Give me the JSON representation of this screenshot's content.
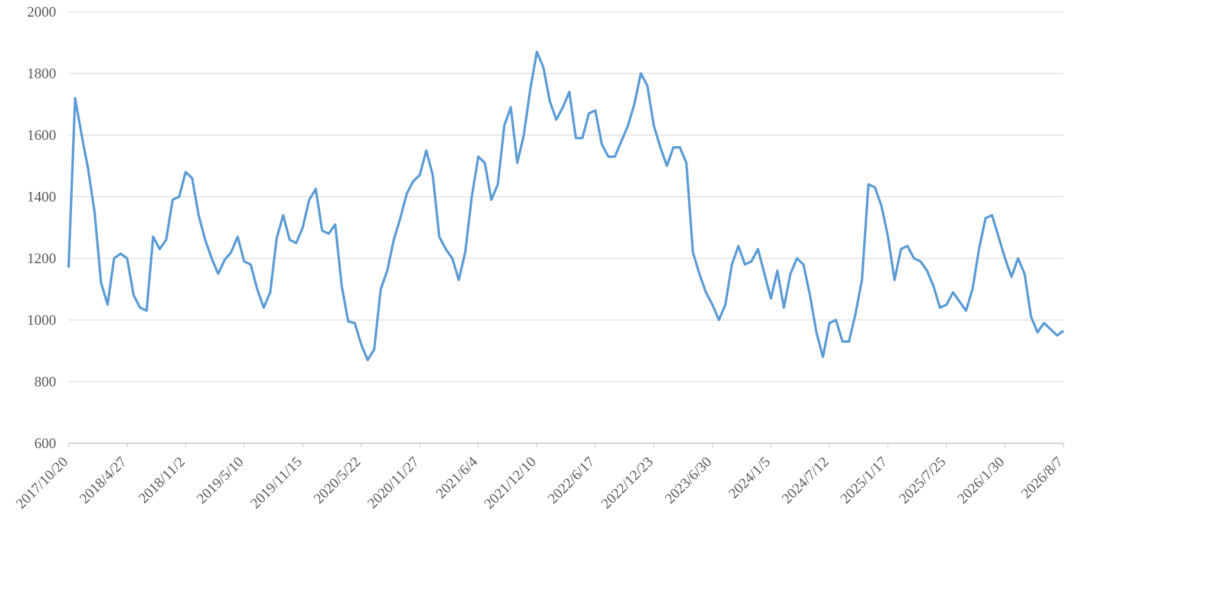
{
  "chart_data": {
    "type": "line",
    "categories": [
      "2017/10/20",
      null,
      null,
      null,
      null,
      null,
      null,
      null,
      null,
      "2018/4/27",
      null,
      null,
      null,
      null,
      null,
      null,
      null,
      null,
      "2018/11/2",
      null,
      null,
      null,
      null,
      null,
      null,
      null,
      null,
      "2019/5/10",
      null,
      null,
      null,
      null,
      null,
      null,
      null,
      null,
      "2019/11/15",
      null,
      null,
      null,
      null,
      null,
      null,
      null,
      null,
      "2020/5/22",
      null,
      null,
      null,
      null,
      null,
      null,
      null,
      null,
      "2020/11/27",
      null,
      null,
      null,
      null,
      null,
      null,
      null,
      null,
      "2021/6/4",
      null,
      null,
      null,
      null,
      null,
      null,
      null,
      null,
      "2021/12/10",
      null,
      null,
      null,
      null,
      null,
      null,
      null,
      null,
      "2022/6/17",
      null,
      null,
      null,
      null,
      null,
      null,
      null,
      null,
      "2022/12/23",
      null,
      null,
      null,
      null,
      null,
      null,
      null,
      null,
      "2023/6/30",
      null,
      null,
      null,
      null,
      null,
      null,
      null,
      null,
      "2024/1/5",
      null,
      null,
      null,
      null,
      null,
      null,
      null,
      null,
      "2024/7/12",
      null,
      null,
      null,
      null,
      null,
      null,
      null,
      null,
      "2025/1/17",
      null,
      null,
      null,
      null,
      null,
      null,
      null,
      null,
      "2025/7/25",
      null,
      null,
      null,
      null,
      null,
      null,
      null,
      null,
      "2026/1/30",
      null,
      null,
      null,
      null,
      null,
      null,
      null,
      null,
      "2026/8/7"
    ],
    "series": [
      {
        "color": "#5b9bd5",
        "values": [
          1170,
          1720,
          1600,
          1490,
          1350,
          1120,
          1050,
          1200,
          1215,
          1200,
          1080,
          1040,
          1030,
          1270,
          1230,
          1260,
          1390,
          1400,
          1480,
          1460,
          1340,
          1260,
          1200,
          1150,
          1195,
          1220,
          1270,
          1190,
          1180,
          1100,
          1040,
          1090,
          1265,
          1340,
          1260,
          1250,
          1300,
          1390,
          1425,
          1290,
          1280,
          1310,
          1110,
          995,
          990,
          920,
          870,
          905,
          1100,
          1160,
          1260,
          1330,
          1410,
          1450,
          1470,
          1550,
          1470,
          1270,
          1230,
          1200,
          1130,
          1220,
          1400,
          1530,
          1510,
          1390,
          1440,
          1630,
          1690,
          1510,
          1600,
          1750,
          1870,
          1820,
          1710,
          1650,
          1690,
          1740,
          1590,
          1590,
          1670,
          1680,
          1570,
          1530,
          1530,
          1580,
          1630,
          1700,
          1800,
          1760,
          1630,
          1560,
          1500,
          1560,
          1560,
          1510,
          1220,
          1150,
          1090,
          1050,
          1000,
          1050,
          1180,
          1240,
          1180,
          1190,
          1230,
          1150,
          1070,
          1160,
          1040,
          1150,
          1200,
          1180,
          1080,
          960,
          880,
          990,
          1000,
          930,
          930,
          1020,
          1130,
          1440,
          1430,
          1370,
          1270,
          1130,
          1230,
          1240,
          1200,
          1190,
          1160,
          1110,
          1040,
          1050,
          1090,
          1060,
          1030,
          1100,
          1230,
          1330,
          1340,
          1270,
          1200,
          1140,
          1200,
          1150,
          1010,
          960,
          990,
          970,
          950,
          965
        ]
      }
    ],
    "ylim": [
      600,
      2000
    ],
    "yticks": [
      600,
      800,
      1000,
      1200,
      1400,
      1600,
      1800,
      2000
    ],
    "grid": true
  }
}
